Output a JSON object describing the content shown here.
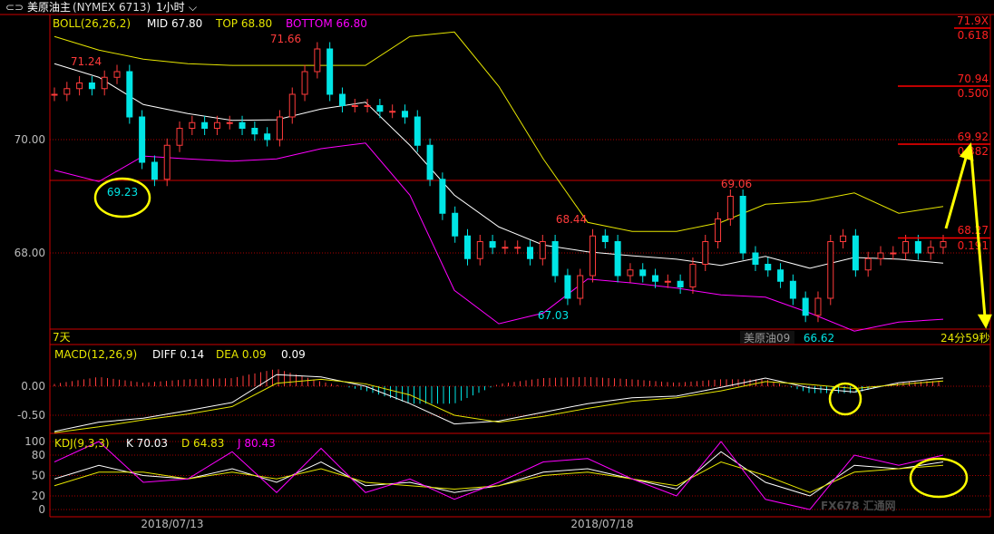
{
  "header": {
    "icon": "link-icon",
    "title": "美原油主",
    "code": "(NYMEX 6713)",
    "period": "1小时"
  },
  "indicators": {
    "boll": {
      "name": "BOLL(26,26,2)",
      "mid": "MID 67.80",
      "top": "TOP 68.80",
      "bottom": "BOTTOM 66.80"
    },
    "macd": {
      "name": "MACD(12,26,9)",
      "diff": "DIFF 0.14",
      "dea": "DEA 0.09",
      "macd": "0.09"
    },
    "kdj": {
      "name": "KDJ(9,3,3)",
      "k": "K 70.03",
      "d": "D 64.83",
      "j": "J 80.43"
    }
  },
  "status_row": {
    "range": "7天",
    "contract": "美原油09",
    "countdown": "24分59秒"
  },
  "colors": {
    "up": "#ff3b3b",
    "down": "#00e5e5",
    "mid": "#ffffff",
    "top": "#e6e600",
    "bottom": "#ff00ff",
    "grid": "#cc0000",
    "annotation": "#ffff00"
  },
  "watermark": "FX678 汇通网",
  "chart_data": [
    {
      "type": "candlestick",
      "ylim": [
        66.5,
        72.0
      ],
      "yticks": [
        "70.00",
        "68.00"
      ],
      "xticks": [
        "2018/07/13",
        "2018/07/18"
      ],
      "close": [
        70.8,
        70.9,
        71.0,
        70.9,
        71.1,
        71.2,
        70.4,
        69.6,
        69.3,
        69.9,
        70.2,
        70.3,
        70.2,
        70.3,
        70.3,
        70.2,
        70.1,
        70.0,
        70.4,
        70.8,
        71.2,
        71.6,
        70.8,
        70.6,
        70.6,
        70.6,
        70.5,
        70.5,
        70.4,
        69.9,
        69.3,
        68.7,
        68.3,
        67.9,
        68.2,
        68.1,
        68.1,
        68.1,
        67.9,
        68.2,
        67.6,
        67.2,
        67.6,
        68.3,
        68.2,
        67.6,
        67.7,
        67.6,
        67.5,
        67.5,
        67.4,
        67.8,
        68.2,
        68.6,
        69.0,
        68.0,
        67.8,
        67.7,
        67.5,
        67.2,
        66.9,
        67.2,
        68.2,
        68.3,
        67.7,
        67.9,
        68.0,
        68.0,
        68.2,
        68.0,
        68.1,
        68.2
      ],
      "annotations": [
        {
          "label": "71.24",
          "value": 71.24
        },
        {
          "label": "69.23",
          "value": 69.23
        },
        {
          "label": "71.66",
          "value": 71.66
        },
        {
          "label": "67.03",
          "value": 67.03
        },
        {
          "label": "68.44",
          "value": 68.44
        },
        {
          "label": "69.06",
          "value": 69.06
        },
        {
          "label": "66.62",
          "value": 66.62
        }
      ],
      "boll_top": [
        71.82,
        71.58,
        71.42,
        71.34,
        71.31,
        71.31,
        71.31,
        71.31,
        71.82,
        71.9,
        70.94,
        69.66,
        68.54,
        68.38,
        68.38,
        68.54,
        68.86,
        68.91,
        69.06,
        68.7,
        68.82
      ],
      "boll_mid": [
        71.34,
        71.1,
        70.62,
        70.46,
        70.34,
        70.35,
        70.54,
        70.66,
        69.9,
        69.02,
        68.46,
        68.14,
        68.02,
        67.95,
        67.89,
        67.78,
        67.94,
        67.73,
        67.92,
        67.89,
        67.82
      ],
      "boll_bottom": [
        69.46,
        69.26,
        69.71,
        69.66,
        69.62,
        69.66,
        69.84,
        69.94,
        69.02,
        67.34,
        66.75,
        66.94,
        67.54,
        67.47,
        67.38,
        67.26,
        67.22,
        66.94,
        66.62,
        66.78,
        66.83
      ],
      "fibonacci": [
        {
          "price": "71.9X",
          "ratio": "0.618"
        },
        {
          "price": "70.94",
          "ratio": "0.500"
        },
        {
          "price": "69.92",
          "ratio": "0.382"
        },
        {
          "price": "68.27",
          "ratio": "0.191"
        }
      ]
    },
    {
      "type": "line",
      "name": "MACD",
      "yticks": [
        "0.00",
        "-0.50"
      ],
      "ylim": [
        -0.8,
        0.3
      ],
      "diff": [
        -0.78,
        -0.62,
        -0.55,
        -0.42,
        -0.28,
        0.2,
        0.16,
        0.0,
        -0.3,
        -0.65,
        -0.6,
        -0.45,
        -0.3,
        -0.2,
        -0.17,
        -0.02,
        0.14,
        -0.03,
        -0.1,
        0.06,
        0.14
      ],
      "dea": [
        -0.8,
        -0.7,
        -0.58,
        -0.48,
        -0.35,
        0.05,
        0.12,
        0.04,
        -0.15,
        -0.5,
        -0.62,
        -0.52,
        -0.38,
        -0.26,
        -0.2,
        -0.08,
        0.08,
        0.03,
        -0.04,
        0.03,
        0.09
      ]
    },
    {
      "type": "line",
      "name": "KDJ",
      "yticks": [
        "100",
        "80",
        "50",
        "20",
        "0"
      ],
      "ylim": [
        -5,
        110
      ],
      "k": [
        45,
        65,
        50,
        45,
        60,
        40,
        70,
        35,
        40,
        25,
        35,
        55,
        60,
        45,
        30,
        85,
        40,
        20,
        65,
        60,
        70
      ],
      "d": [
        35,
        55,
        55,
        45,
        55,
        45,
        60,
        40,
        35,
        30,
        35,
        50,
        55,
        45,
        35,
        70,
        50,
        25,
        55,
        60,
        65
      ],
      "j": [
        70,
        100,
        40,
        45,
        85,
        25,
        90,
        25,
        45,
        15,
        40,
        70,
        75,
        45,
        20,
        100,
        15,
        0,
        80,
        65,
        80
      ]
    }
  ]
}
